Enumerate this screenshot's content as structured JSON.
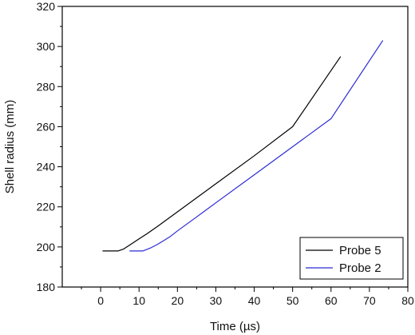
{
  "chart_data": {
    "type": "line",
    "title": "",
    "xlabel": "Time  (µs)",
    "ylabel": "Shell radius  (mm)",
    "xlim": [
      -10,
      80
    ],
    "ylim": [
      180,
      320
    ],
    "xticks": [
      0,
      10,
      20,
      30,
      40,
      50,
      60,
      70,
      80
    ],
    "xticks_minor": [
      -5,
      5,
      15,
      25,
      35,
      45,
      55,
      65,
      75
    ],
    "yticks": [
      180,
      200,
      220,
      240,
      260,
      280,
      300,
      320
    ],
    "yticks_minor": [
      190,
      210,
      230,
      250,
      270,
      290,
      310
    ],
    "grid": false,
    "legend_position": "bottom-right",
    "series": [
      {
        "name": "Probe 5",
        "color": "#000000",
        "x": [
          0.5,
          4.5,
          6,
          8,
          10,
          12,
          15,
          20,
          25,
          30,
          40,
          50,
          62.5
        ],
        "y": [
          198,
          198,
          199,
          201.5,
          204,
          206.5,
          210.5,
          217.5,
          224.5,
          231.5,
          245.5,
          260,
          295
        ]
      },
      {
        "name": "Probe 2",
        "color": "#2b2bd6",
        "x": [
          7.5,
          11,
          13,
          15,
          18,
          20,
          25,
          30,
          40,
          50,
          60,
          73.5
        ],
        "y": [
          198,
          198,
          199.5,
          201.5,
          205,
          208,
          215,
          222,
          236,
          250,
          264,
          303
        ]
      }
    ]
  }
}
